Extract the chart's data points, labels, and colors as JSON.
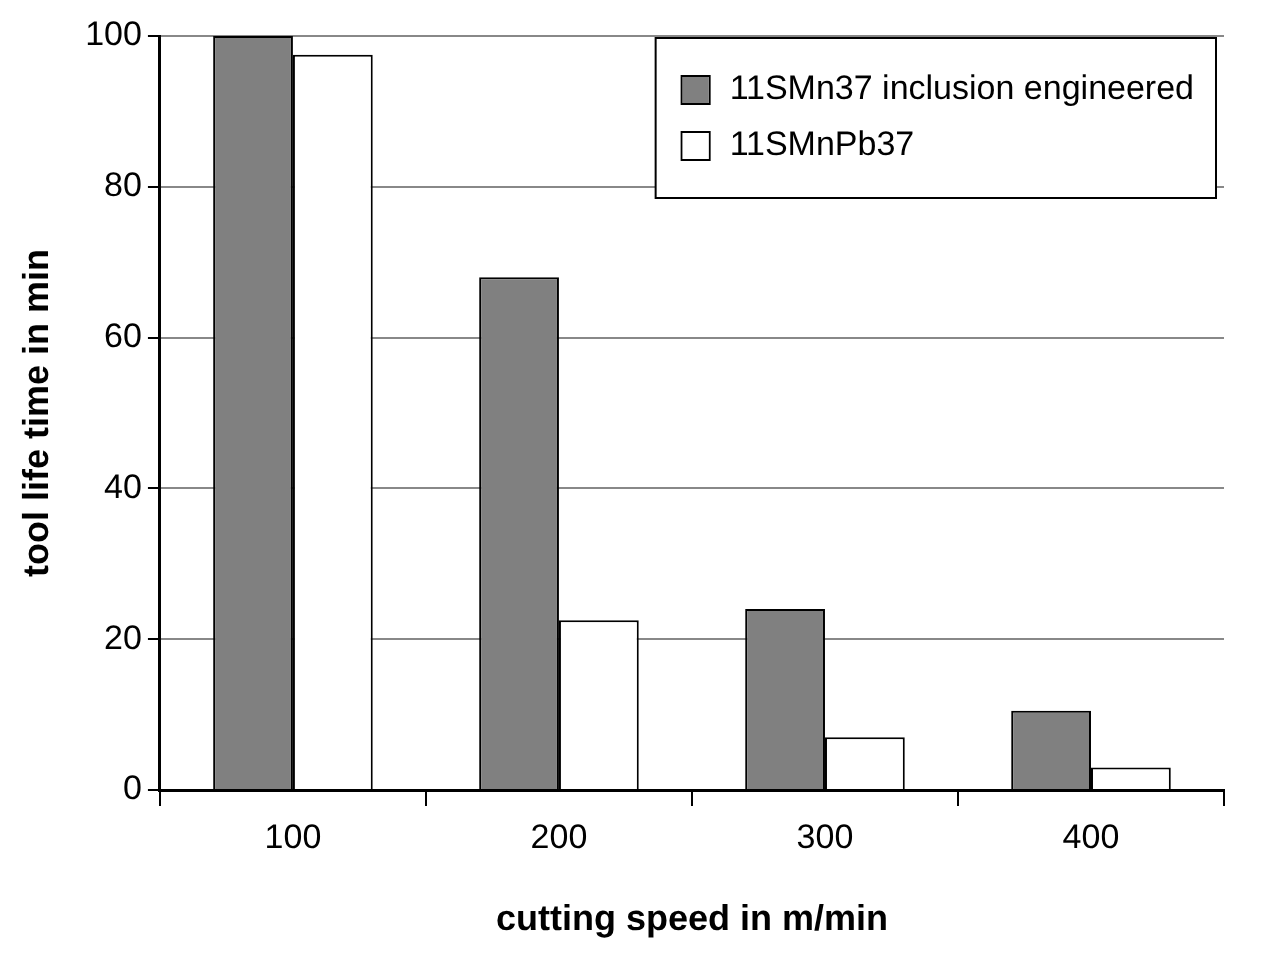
{
  "chart_data": {
    "type": "bar",
    "xlabel": "cutting speed in m/min",
    "ylabel": "tool life time in min",
    "categories": [
      "100",
      "200",
      "300",
      "400"
    ],
    "series": [
      {
        "name": "11SMn37 inclusion engineered",
        "color": "#808080",
        "values": [
          100,
          68,
          24,
          10.5
        ]
      },
      {
        "name": "11SMnPb37",
        "color": "#ffffff",
        "values": [
          97.5,
          22.5,
          7,
          3
        ]
      }
    ],
    "ylim": [
      0,
      100
    ],
    "yticks": [
      0,
      20,
      40,
      60,
      80,
      100
    ],
    "grid": "y",
    "legend": "top right"
  }
}
